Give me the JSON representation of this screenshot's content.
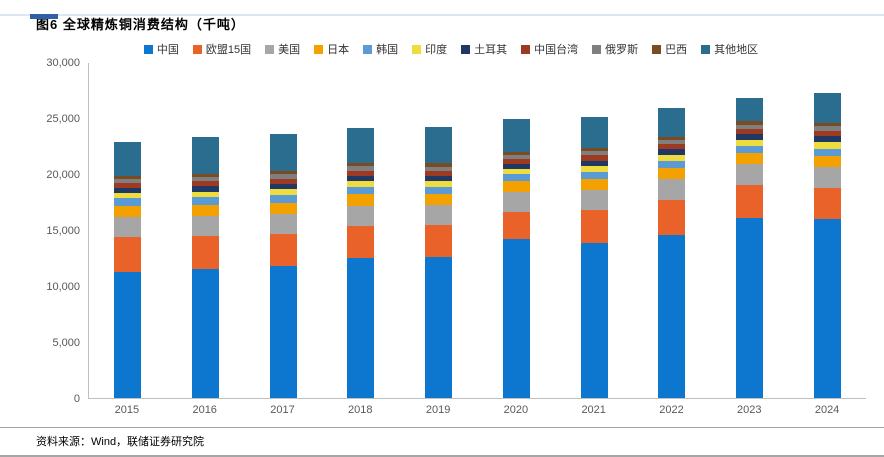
{
  "page": {
    "title": "图6  全球精炼铜消费结构（千吨）",
    "source": "资料来源：Wind，联储证券研究院",
    "accent_color": "#2f5fa5"
  },
  "chart_data": {
    "type": "bar",
    "stacked": true,
    "title": "全球精炼铜消费结构（千吨）",
    "xlabel": "",
    "ylabel": "",
    "ylim": [
      0,
      30000
    ],
    "y_ticks": [
      "30,000",
      "25,000",
      "20,000",
      "15,000",
      "10,000",
      "5,000",
      "0"
    ],
    "grid": false,
    "legend_position": "top",
    "categories": [
      "2015",
      "2016",
      "2017",
      "2018",
      "2019",
      "2020",
      "2021",
      "2022",
      "2023",
      "2024"
    ],
    "series": [
      {
        "name": "中国",
        "color": "#0d76ce",
        "values": [
          11300,
          11550,
          11800,
          12500,
          12650,
          14200,
          13900,
          14600,
          16100,
          16000
        ]
      },
      {
        "name": "欧盟15国",
        "color": "#e8622a",
        "values": [
          3100,
          2950,
          2900,
          2900,
          2800,
          2500,
          2900,
          3100,
          3000,
          2850
        ]
      },
      {
        "name": "美国",
        "color": "#a6a6a6",
        "values": [
          1800,
          1800,
          1800,
          1800,
          1830,
          1760,
          1840,
          1880,
          1850,
          1850
        ]
      },
      {
        "name": "日本",
        "color": "#f2a100",
        "values": [
          1000,
          970,
          1000,
          1050,
          1000,
          940,
          980,
          980,
          950,
          950
        ]
      },
      {
        "name": "韩国",
        "color": "#5b9bd5",
        "values": [
          700,
          740,
          700,
          650,
          650,
          650,
          660,
          650,
          630,
          640
        ]
      },
      {
        "name": "印度",
        "color": "#efdc3f",
        "values": [
          450,
          480,
          480,
          500,
          500,
          420,
          500,
          550,
          600,
          650
        ]
      },
      {
        "name": "土耳其",
        "color": "#1f3864",
        "values": [
          450,
          460,
          460,
          450,
          430,
          450,
          480,
          500,
          520,
          550
        ]
      },
      {
        "name": "中国台湾",
        "color": "#9e3a21",
        "values": [
          480,
          470,
          500,
          500,
          470,
          470,
          480,
          450,
          430,
          430
        ]
      },
      {
        "name": "俄罗斯",
        "color": "#7f7f7f",
        "values": [
          350,
          350,
          420,
          400,
          400,
          380,
          400,
          400,
          400,
          410
        ]
      },
      {
        "name": "巴西",
        "color": "#7b4b21",
        "values": [
          300,
          280,
          280,
          290,
          290,
          260,
          290,
          290,
          290,
          290
        ]
      },
      {
        "name": "其他地区",
        "color": "#2a6d8f",
        "values": [
          2970,
          3350,
          3310,
          3160,
          3280,
          2970,
          2720,
          2600,
          2130,
          2680
        ]
      }
    ]
  }
}
